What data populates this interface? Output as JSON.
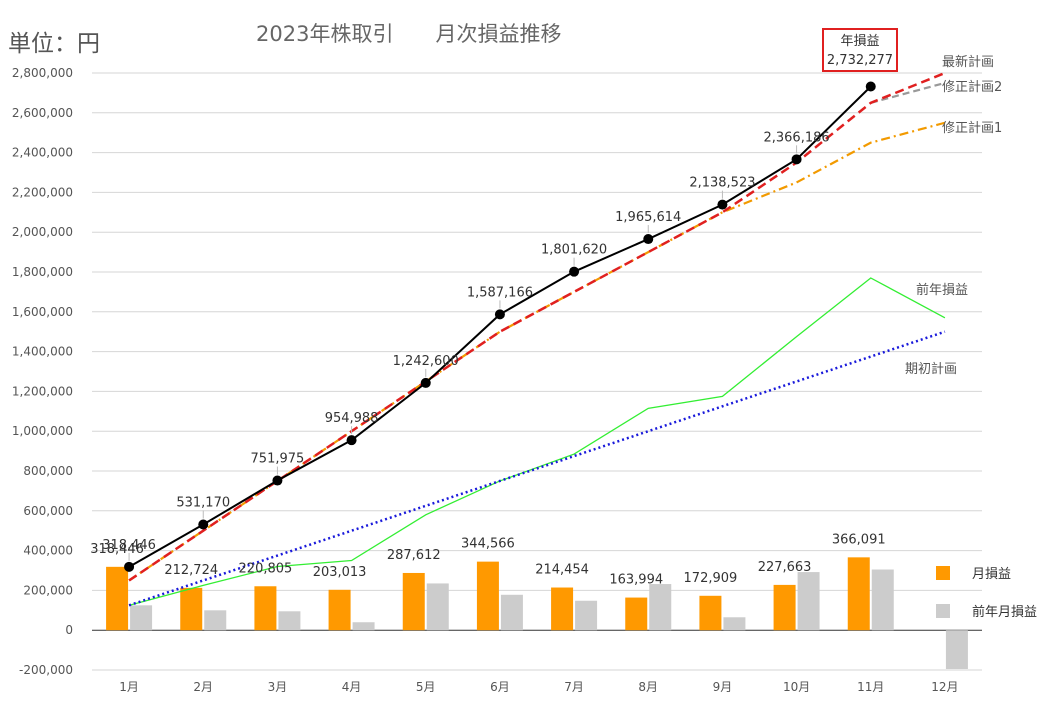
{
  "unit_label": "単位：円",
  "title": "2023年株取引　　月次損益推移",
  "annual_box": {
    "label": "年損益",
    "value": "2,732,277"
  },
  "colors": {
    "cumulative": "#000000",
    "latest_plan": "#e02020",
    "revised_plan_2": "#999999",
    "revised_plan_1": "#f29a00",
    "prev_year": "#33ee33",
    "initial_plan": "#1a1adb",
    "monthly": "#ff9900",
    "prev_monthly": "#cccccc",
    "grid": "#d6d6d6",
    "axis_text": "#555555"
  },
  "chart_data": {
    "type": "bar+line",
    "categories": [
      "1月",
      "2月",
      "3月",
      "4月",
      "5月",
      "6月",
      "7月",
      "8月",
      "9月",
      "10月",
      "11月",
      "12月"
    ],
    "ylim": [
      -200000,
      2800000
    ],
    "ytick_step": 200000,
    "ytick_labels": [
      "-200,000",
      "0",
      "200,000",
      "400,000",
      "600,000",
      "800,000",
      "1,000,000",
      "1,200,000",
      "1,400,000",
      "1,600,000",
      "1,800,000",
      "2,000,000",
      "2,200,000",
      "2,400,000",
      "2,600,000",
      "2,800,000"
    ],
    "grid": true,
    "bars": [
      {
        "name": "月損益",
        "values": [
          318446,
          212724,
          220805,
          203013,
          287612,
          344566,
          214454,
          163994,
          172909,
          227663,
          366091,
          null
        ],
        "labels": [
          "318,446",
          "212,724",
          "220,805",
          "203,013",
          "287,612",
          "344,566",
          "214,454",
          "163,994",
          "172,909",
          "227,663",
          "366,091",
          ""
        ]
      },
      {
        "name": "前年月損益",
        "values": [
          125000,
          100000,
          95000,
          40000,
          235000,
          178000,
          148000,
          232000,
          65000,
          292000,
          305000,
          -195000
        ]
      }
    ],
    "lines": [
      {
        "name": "",
        "key": "cumulative",
        "values": [
          318446,
          531170,
          751975,
          954988,
          1242600,
          1587166,
          1801620,
          1965614,
          2138523,
          2366186,
          2732277,
          null
        ],
        "labels": [
          "318,446",
          "531,170",
          "751,975",
          "954,988",
          "1,242,600",
          "1,587,166",
          "1,801,620",
          "1,965,614",
          "2,138,523",
          "2,366,186",
          "",
          ""
        ]
      },
      {
        "name": "前年損益",
        "key": "prev_year",
        "values": [
          125000,
          225000,
          320000,
          350000,
          580000,
          750000,
          885000,
          1115000,
          1175000,
          1475000,
          1770000,
          1570000
        ]
      },
      {
        "name": "期初計画",
        "key": "initial_plan",
        "values": [
          125000,
          250000,
          375000,
          500000,
          625000,
          750000,
          875000,
          1000000,
          1125000,
          1250000,
          1375000,
          1500000
        ]
      },
      {
        "name": "修正計画1",
        "key": "revised_plan_1",
        "values": [
          250000,
          500000,
          750000,
          1000000,
          1250000,
          1500000,
          1700000,
          1900000,
          2100000,
          2250000,
          2450000,
          2550000
        ]
      },
      {
        "name": "修正計画2",
        "key": "revised_plan_2",
        "values": [
          null,
          null,
          null,
          null,
          null,
          null,
          null,
          null,
          null,
          null,
          2650000,
          2750000
        ]
      },
      {
        "name": "最新計画",
        "key": "latest_plan",
        "values": [
          250000,
          500000,
          750000,
          1000000,
          1250000,
          1500000,
          1700000,
          1900000,
          2100000,
          2350000,
          2650000,
          2800000
        ]
      }
    ],
    "legend": [
      "月損益",
      "前年月損益"
    ],
    "legend_position": "bottom-right"
  }
}
